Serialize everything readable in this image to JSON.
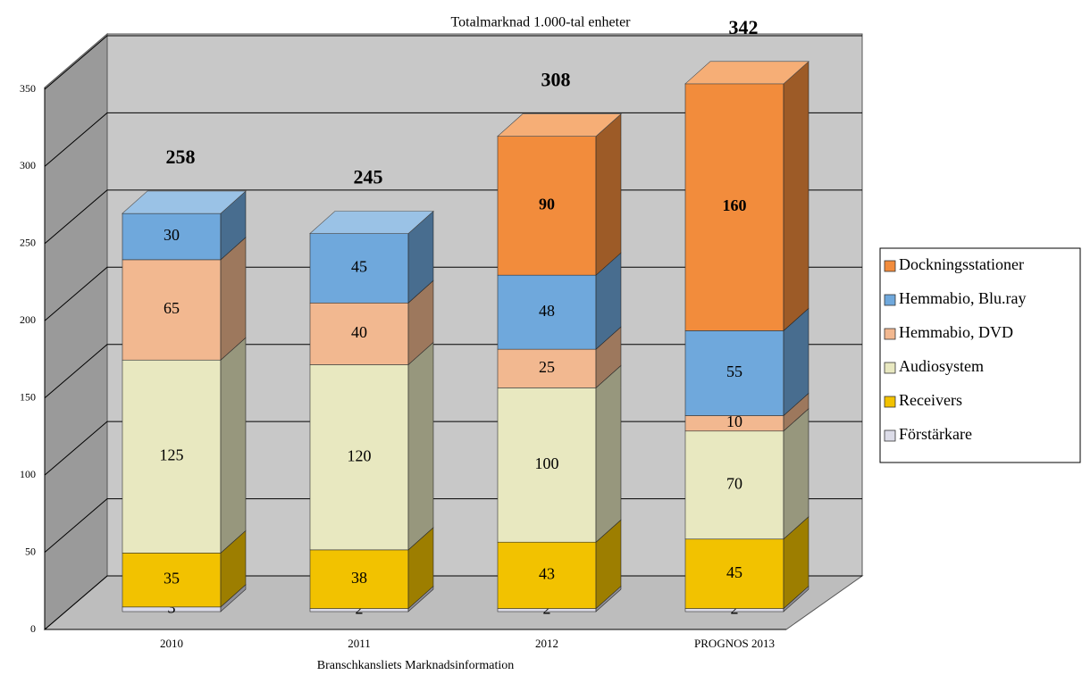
{
  "chart_data": {
    "type": "bar3d_stacked",
    "subtitle": "Totalmarknad  1.000-tal enheter",
    "x_label": "Branschkansliets Marknadsinformation",
    "categories": [
      "2010",
      "2011",
      "2012",
      "PROGNOS 2013"
    ],
    "series": [
      {
        "name": "Förstärkare",
        "color": "#dcdce8",
        "values": [
          3,
          2,
          2,
          2
        ]
      },
      {
        "name": "Receivers",
        "color": "#f2c200",
        "values": [
          35,
          38,
          43,
          45
        ]
      },
      {
        "name": "Audiosystem",
        "color": "#e8e8c0",
        "values": [
          125,
          120,
          100,
          70
        ]
      },
      {
        "name": "Hemmabio, DVD",
        "color": "#f2b890",
        "values": [
          65,
          40,
          25,
          10
        ]
      },
      {
        "name": "Hemmabio, Blu.ray",
        "color": "#6fa8dc",
        "values": [
          30,
          45,
          48,
          55
        ]
      },
      {
        "name": "Dockningsstationer",
        "color": "#f28c3c",
        "values": [
          null,
          null,
          90,
          160
        ]
      }
    ],
    "totals": [
      258,
      245,
      308,
      342
    ],
    "ylim": [
      0,
      350
    ],
    "yticks": [
      0,
      50,
      100,
      150,
      200,
      250,
      300,
      350
    ],
    "grid": true,
    "legend": "right"
  }
}
